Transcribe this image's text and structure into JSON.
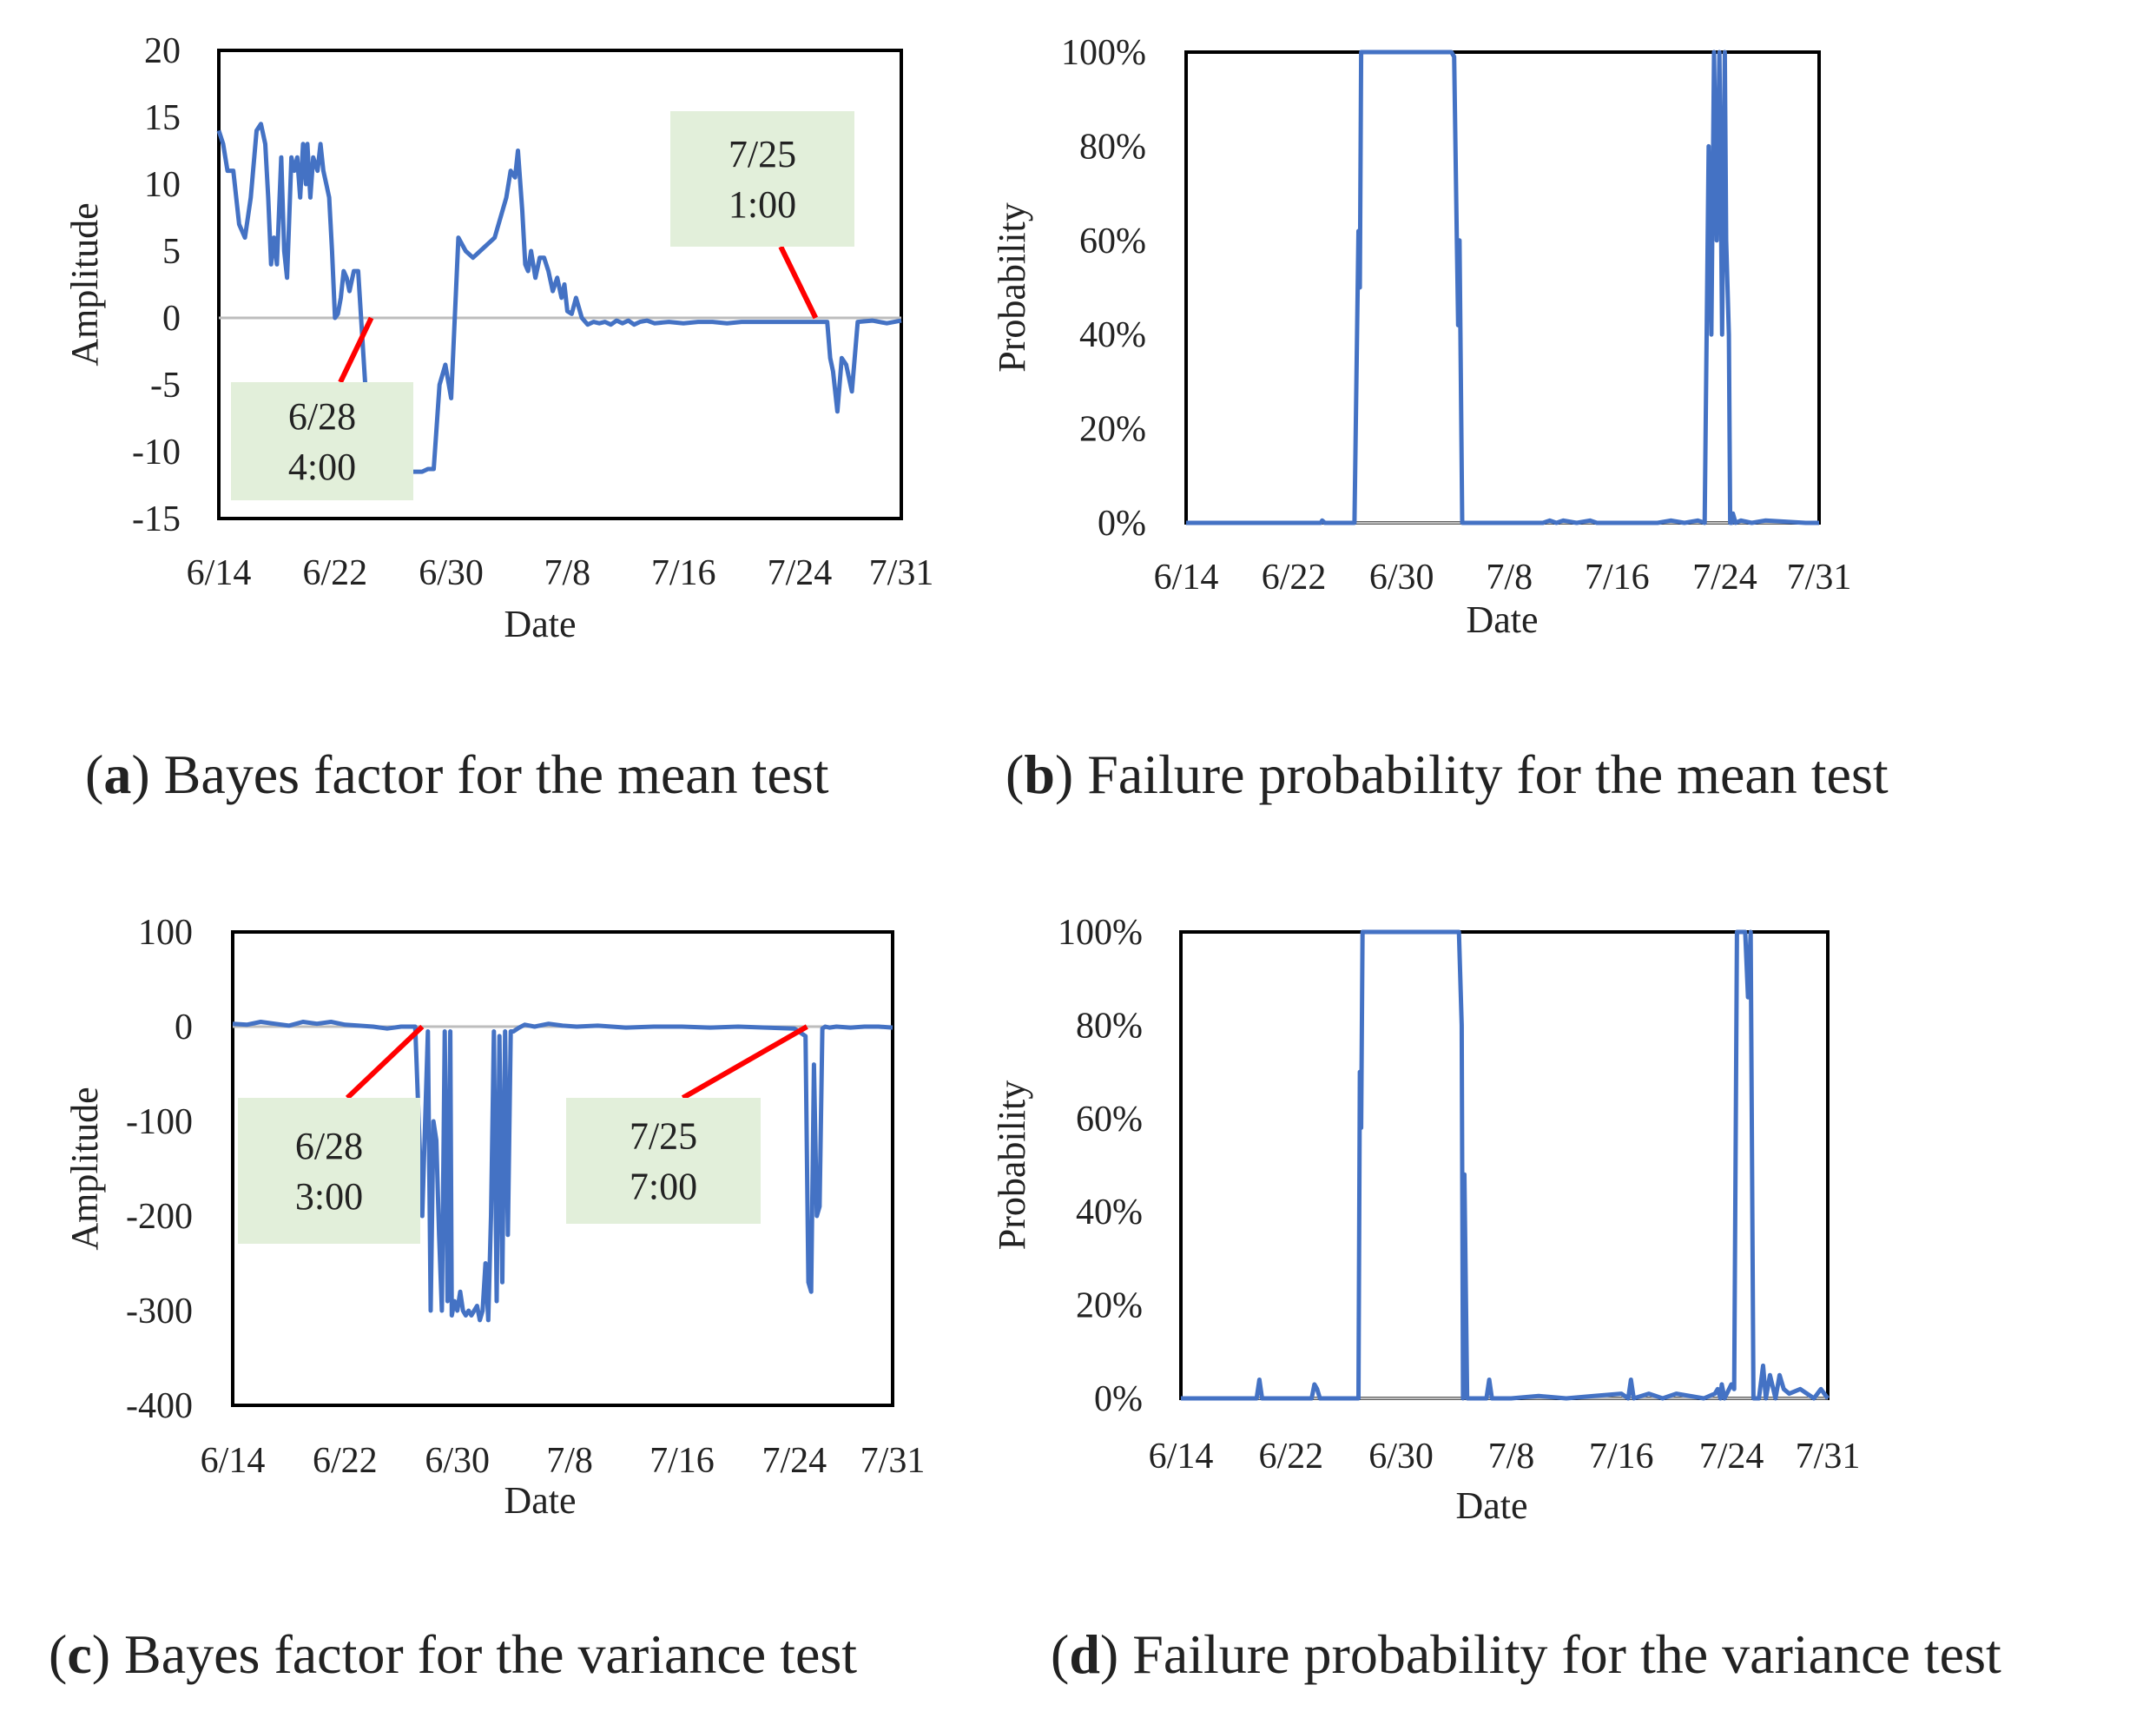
{
  "figure": {
    "captions": [
      {
        "letter": "a",
        "text": ") Bayes factor for the mean test"
      },
      {
        "letter": "b",
        "text": ") Failure probability for the mean test"
      },
      {
        "letter": "c",
        "text": ") Bayes factor for the variance test"
      },
      {
        "letter": "d",
        "text": ") Failure probability for the variance test"
      }
    ]
  },
  "chart_data": [
    {
      "id": "a",
      "type": "line",
      "title": "",
      "xlabel": "Date",
      "ylabel": "Amplitude",
      "x_ticks": [
        "6/14",
        "6/22",
        "6/30",
        "7/8",
        "7/16",
        "7/24",
        "7/31"
      ],
      "x_tick_days": [
        0,
        8,
        16,
        24,
        32,
        40,
        47
      ],
      "xlim": [
        0,
        47
      ],
      "ylim": [
        -15,
        20
      ],
      "y_ticks": [
        -15,
        -10,
        -5,
        0,
        5,
        10,
        15,
        20
      ],
      "y_tick_labels": [
        "-15",
        "-10",
        "-5",
        "0",
        "5",
        "10",
        "15",
        "20"
      ],
      "zero_line": true,
      "series": [
        {
          "name": "Bayes factor (mean)",
          "color": "#4472C4",
          "x": [
            0,
            0.3,
            0.6,
            1.0,
            1.4,
            1.8,
            2.2,
            2.6,
            2.9,
            3.2,
            3.4,
            3.6,
            3.8,
            4.0,
            4.3,
            4.5,
            4.7,
            4.8,
            5.0,
            5.2,
            5.4,
            5.6,
            5.8,
            6.0,
            6.1,
            6.3,
            6.5,
            6.8,
            7.0,
            7.2,
            7.4,
            7.6,
            7.8,
            8.0,
            8.2,
            8.4,
            8.6,
            8.8,
            9.0,
            9.3,
            9.6,
            10.0,
            10.2,
            10.5,
            10.8,
            11.0,
            11.3,
            11.6,
            12.0,
            12.3,
            12.6,
            13.0,
            13.2,
            13.4,
            13.7,
            14.0,
            14.4,
            14.8,
            15.2,
            15.6,
            16.0,
            16.5,
            17.0,
            17.5,
            18.0,
            19.0,
            19.8,
            20.1,
            20.4,
            20.6,
            20.9,
            21.1,
            21.3,
            21.5,
            21.8,
            22.1,
            22.4,
            22.7,
            23.0,
            23.3,
            23.6,
            23.8,
            24.0,
            24.3,
            24.6,
            25.0,
            25.4,
            25.8,
            26.2,
            26.6,
            27.0,
            27.4,
            27.8,
            28.2,
            28.6,
            29.0,
            29.5,
            30.0,
            31.0,
            32.0,
            33.0,
            34.0,
            35.0,
            36.0,
            37.0,
            38.0,
            39.0,
            40.0,
            41.0,
            41.3,
            41.6,
            41.9,
            42.1,
            42.3,
            42.6,
            42.9,
            43.2,
            43.6,
            44.0,
            45.0,
            46.0,
            47.0
          ],
          "y": [
            14,
            13,
            11,
            11,
            7,
            6,
            9,
            14,
            14.5,
            13,
            9,
            4,
            6,
            4,
            12,
            5,
            3,
            6,
            12,
            11,
            12,
            9,
            13,
            10,
            13,
            9,
            12,
            11,
            13,
            11,
            10,
            9,
            5,
            0,
            0.3,
            1.5,
            3.5,
            3,
            2,
            3.5,
            3.5,
            -3.5,
            -7,
            -10,
            -10.5,
            -11,
            -10,
            -11.5,
            -11.5,
            -11.5,
            -11.5,
            -11.5,
            -11.5,
            -11.5,
            -11.5,
            -11.5,
            -11.3,
            -11.3,
            -5,
            -3.5,
            -6,
            6,
            5,
            4.5,
            5,
            6,
            9,
            11,
            10.5,
            12.5,
            8,
            4,
            3.5,
            5,
            3,
            4.5,
            4.5,
            3.5,
            2,
            3,
            1.5,
            2.5,
            0.5,
            0.3,
            1.5,
            0,
            -0.5,
            -0.3,
            -0.4,
            -0.3,
            -0.5,
            -0.2,
            -0.4,
            -0.2,
            -0.5,
            -0.3,
            -0.2,
            -0.4,
            -0.3,
            -0.4,
            -0.3,
            -0.3,
            -0.4,
            -0.3,
            -0.3,
            -0.3,
            -0.3,
            -0.3,
            -0.3,
            -0.3,
            -0.3,
            -0.3,
            -3,
            -4,
            -7,
            -3,
            -3.5,
            -5.5,
            -0.3,
            -0.2,
            -0.4,
            -0.2
          ]
        }
      ],
      "annotations": [
        {
          "lines": [
            "6/28",
            "4:00"
          ],
          "point_day": 10.5,
          "point_value": 0
        },
        {
          "lines": [
            "7/25",
            "1:00"
          ],
          "point_day": 41.1,
          "point_value": 0
        }
      ]
    },
    {
      "id": "b",
      "type": "line",
      "title": "",
      "xlabel": "Date",
      "ylabel": "Probability",
      "x_ticks": [
        "6/14",
        "6/22",
        "6/30",
        "7/8",
        "7/16",
        "7/24",
        "7/31"
      ],
      "x_tick_days": [
        0,
        8,
        16,
        24,
        32,
        40,
        47
      ],
      "xlim": [
        0,
        47
      ],
      "ylim": [
        0,
        100
      ],
      "y_ticks": [
        0,
        20,
        40,
        60,
        80,
        100
      ],
      "y_tick_labels": [
        "0%",
        "20%",
        "40%",
        "60%",
        "80%",
        "100%"
      ],
      "zero_line": true,
      "series": [
        {
          "name": "Failure probability (mean)",
          "color": "#4472C4",
          "x": [
            0,
            10.0,
            10.1,
            10.3,
            12.5,
            12.8,
            12.9,
            13.0,
            13.1,
            13.15,
            13.3,
            13.5,
            13.7,
            19.5,
            19.7,
            19.9,
            20.1,
            20.2,
            20.3,
            20.5,
            26.5,
            27.0,
            27.5,
            28.0,
            29.0,
            30.0,
            30.5,
            35.0,
            36.0,
            37.0,
            38.0,
            38.5,
            38.8,
            39.0,
            39.2,
            39.4,
            39.6,
            39.8,
            40.0,
            40.1,
            40.3,
            40.4,
            40.5,
            40.6,
            40.8,
            41.2,
            42.0,
            43.0,
            46.0,
            47.0
          ],
          "y": [
            0,
            0,
            0.5,
            0,
            0,
            62,
            50,
            100,
            100,
            100,
            100,
            100,
            100,
            100,
            100,
            99,
            60,
            42,
            60,
            0,
            0,
            0.5,
            0,
            0.5,
            0,
            0.5,
            0,
            0,
            0.5,
            0,
            0.5,
            0,
            80,
            40,
            100,
            60,
            100,
            40,
            100,
            60,
            40,
            0,
            0,
            2,
            0,
            0.5,
            0,
            0.5,
            0,
            0
          ]
        }
      ]
    },
    {
      "id": "c",
      "type": "line",
      "title": "",
      "xlabel": "Date",
      "ylabel": "Amplitude",
      "x_ticks": [
        "6/14",
        "6/22",
        "6/30",
        "7/8",
        "7/16",
        "7/24",
        "7/31"
      ],
      "x_tick_days": [
        0,
        8,
        16,
        24,
        32,
        40,
        47
      ],
      "xlim": [
        0,
        47
      ],
      "ylim": [
        -400,
        100
      ],
      "y_ticks": [
        -400,
        -300,
        -200,
        -100,
        0,
        100
      ],
      "y_tick_labels": [
        "-400",
        "-300",
        "-200",
        "-100",
        "0",
        "100"
      ],
      "zero_line": true,
      "series": [
        {
          "name": "Bayes factor (variance)",
          "color": "#4472C4",
          "x": [
            0,
            1,
            2,
            3,
            4,
            5,
            6,
            7,
            8,
            9,
            10,
            11,
            12,
            13.0,
            13.5,
            13.9,
            14.1,
            14.3,
            14.5,
            14.7,
            14.9,
            15.1,
            15.3,
            15.5,
            15.6,
            15.8,
            16.0,
            16.2,
            16.4,
            16.6,
            16.8,
            17.0,
            17.2,
            17.4,
            17.6,
            17.8,
            18.0,
            18.2,
            18.4,
            18.6,
            18.8,
            19.0,
            19.2,
            19.4,
            19.6,
            19.8,
            20.0,
            20.2,
            20.4,
            20.8,
            21.5,
            22.5,
            23.5,
            24.5,
            26,
            28,
            30,
            32,
            34,
            36,
            38,
            40,
            40.8,
            41.0,
            41.2,
            41.4,
            41.6,
            41.8,
            42.0,
            42.2,
            42.5,
            43,
            44,
            45,
            46,
            47
          ],
          "y": [
            3,
            2,
            5,
            3,
            1,
            5,
            3,
            5,
            2,
            1,
            0,
            -2,
            0,
            0,
            -200,
            -5,
            -300,
            -100,
            -120,
            -220,
            -300,
            -5,
            -290,
            -5,
            -305,
            -290,
            -300,
            -280,
            -300,
            -305,
            -300,
            -305,
            -300,
            -295,
            -310,
            -300,
            -250,
            -310,
            -200,
            -5,
            -290,
            -10,
            -270,
            -5,
            -220,
            -5,
            -5,
            -3,
            -1,
            2,
            0,
            3,
            1,
            0,
            1,
            -1,
            0,
            0,
            -1,
            0,
            -1,
            -2,
            -10,
            -270,
            -280,
            -40,
            -200,
            -190,
            -2,
            0,
            -1,
            0,
            -1,
            0,
            0,
            -1
          ]
        }
      ],
      "annotations": [
        {
          "lines": [
            "6/28",
            "3:00"
          ],
          "point_day": 13.5,
          "point_value": 0
        },
        {
          "lines": [
            "7/25",
            "7:00"
          ],
          "point_day": 40.9,
          "point_value": 0
        }
      ]
    },
    {
      "id": "d",
      "type": "line",
      "title": "",
      "xlabel": "Date",
      "ylabel": "Probability",
      "x_ticks": [
        "6/14",
        "6/22",
        "6/30",
        "7/8",
        "7/16",
        "7/24",
        "7/31"
      ],
      "x_tick_days": [
        0,
        8,
        16,
        24,
        32,
        40,
        47
      ],
      "xlim": [
        0,
        47
      ],
      "ylim": [
        0,
        100
      ],
      "y_ticks": [
        0,
        20,
        40,
        60,
        80,
        100
      ],
      "y_tick_labels": [
        "0%",
        "20%",
        "40%",
        "60%",
        "80%",
        "100%"
      ],
      "zero_line": true,
      "series": [
        {
          "name": "Failure probability (variance)",
          "color": "#4472C4",
          "x": [
            0,
            5.5,
            5.7,
            5.9,
            9.5,
            9.7,
            9.9,
            10.1,
            12.9,
            13.0,
            13.1,
            13.2,
            13.4,
            13.5,
            16.5,
            20.0,
            20.2,
            20.4,
            20.5,
            20.6,
            20.8,
            21.2,
            22.2,
            22.4,
            22.6,
            24,
            26,
            28,
            30,
            32,
            32.5,
            32.7,
            32.9,
            34,
            35,
            36,
            38,
            38.8,
            39.0,
            39.2,
            39.3,
            39.5,
            40.0,
            40.2,
            40.4,
            40.6,
            41.0,
            41.2,
            41.4,
            41.6,
            42.0,
            42.3,
            42.5,
            42.8,
            43.2,
            43.5,
            43.8,
            44.2,
            45,
            46,
            46.5,
            47
          ],
          "y": [
            0,
            0,
            4,
            0,
            0,
            3,
            2,
            0,
            0,
            70,
            58,
            100,
            100,
            100,
            100,
            100,
            100,
            80,
            0,
            48,
            0,
            0,
            0,
            4,
            0,
            0,
            0.5,
            0,
            0.5,
            1,
            0,
            4,
            0,
            1,
            0,
            1,
            0,
            1,
            2,
            0,
            3,
            0,
            3,
            2,
            100,
            100,
            100,
            86,
            100,
            0,
            0,
            7,
            0,
            5,
            0,
            5,
            2,
            1,
            2,
            0,
            2,
            0
          ]
        }
      ]
    }
  ]
}
